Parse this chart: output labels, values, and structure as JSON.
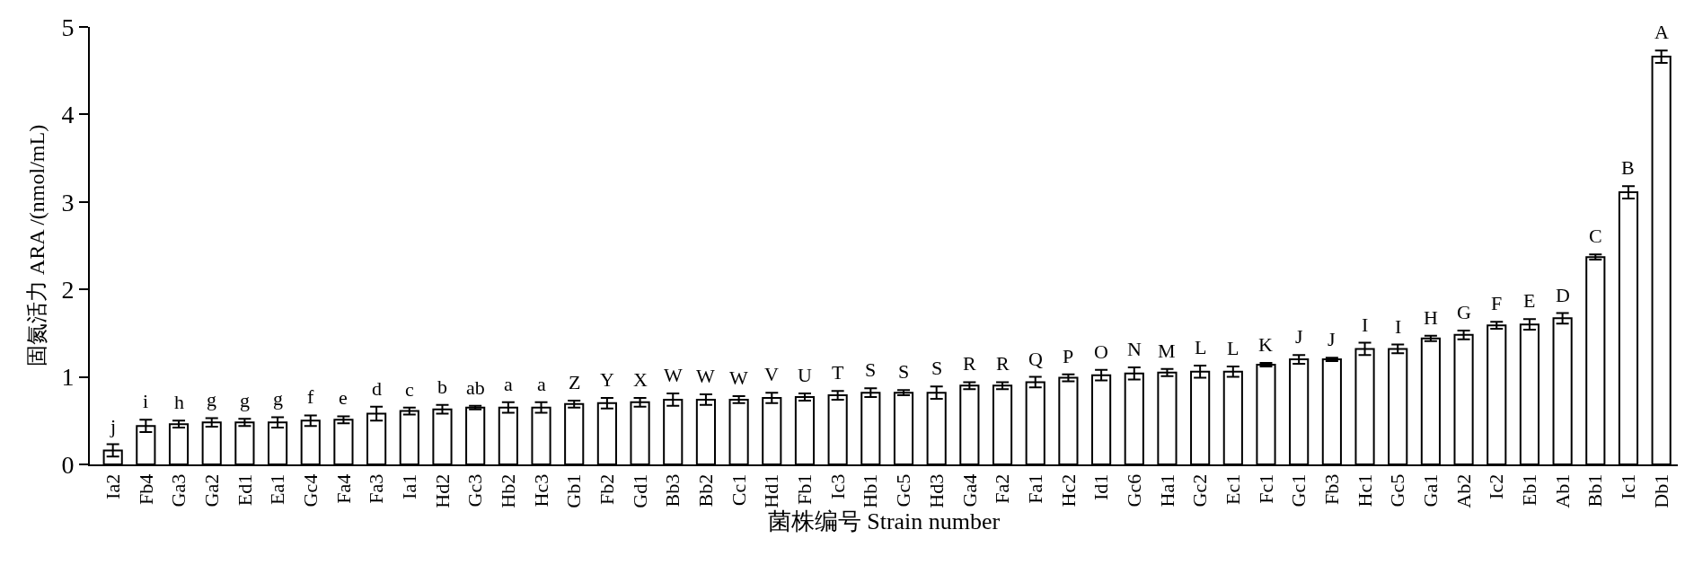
{
  "chart_data": {
    "type": "bar",
    "xlabel": "菌株编号 Strain number",
    "ylabel": "固氮活力 ARA /(nmol/mL)",
    "categories": [
      "Ia2",
      "Fb4",
      "Ga3",
      "Ga2",
      "Ed1",
      "Ea1",
      "Gc4",
      "Fa4",
      "Fa3",
      "Ia1",
      "Hd2",
      "Gc3",
      "Hb2",
      "Hc3",
      "Gb1",
      "Fb2",
      "Gd1",
      "Bb3",
      "Bb2",
      "Cc1",
      "Hd1",
      "Fb1",
      "Ic3",
      "Hb1",
      "Gc5",
      "Hd3",
      "Ga4",
      "Fa2",
      "Fa1",
      "Hc2",
      "Id1",
      "Gc6",
      "Ha1",
      "Gc2",
      "Ec1",
      "Fc1",
      "Gc1",
      "Fb3",
      "Hc1",
      "Gc5",
      "Ga1",
      "Ab2",
      "Ic2",
      "Eb1",
      "Ab1",
      "Bb1",
      "Ic1",
      "Db1"
    ],
    "values": [
      0.16,
      0.44,
      0.46,
      0.48,
      0.48,
      0.48,
      0.5,
      0.51,
      0.58,
      0.61,
      0.63,
      0.65,
      0.65,
      0.65,
      0.69,
      0.7,
      0.71,
      0.74,
      0.74,
      0.74,
      0.76,
      0.77,
      0.79,
      0.82,
      0.82,
      0.82,
      0.9,
      0.9,
      0.94,
      0.99,
      1.02,
      1.04,
      1.05,
      1.06,
      1.06,
      1.14,
      1.2,
      1.2,
      1.32,
      1.32,
      1.44,
      1.48,
      1.59,
      1.6,
      1.67,
      2.37,
      3.11,
      4.66
    ],
    "errors": [
      0.07,
      0.07,
      0.04,
      0.05,
      0.04,
      0.06,
      0.06,
      0.04,
      0.08,
      0.04,
      0.05,
      0.02,
      0.06,
      0.06,
      0.04,
      0.06,
      0.05,
      0.07,
      0.06,
      0.04,
      0.06,
      0.04,
      0.05,
      0.05,
      0.03,
      0.07,
      0.04,
      0.04,
      0.06,
      0.04,
      0.06,
      0.07,
      0.04,
      0.07,
      0.06,
      0.02,
      0.05,
      0.02,
      0.07,
      0.05,
      0.03,
      0.05,
      0.04,
      0.06,
      0.06,
      0.03,
      0.07,
      0.07
    ],
    "value_labels": [
      "j",
      "i",
      "h",
      "g",
      "g",
      "g",
      "f",
      "e",
      "d",
      "c",
      "b",
      "ab",
      "a",
      "a",
      "Z",
      "Y",
      "X",
      "W",
      "W",
      "W",
      "V",
      "U",
      "T",
      "S",
      "S",
      "S",
      "R",
      "R",
      "Q",
      "P",
      "O",
      "N",
      "M",
      "L",
      "L",
      "K",
      "J",
      "J",
      "I",
      "I",
      "H",
      "G",
      "F",
      "E",
      "D",
      "C",
      "B",
      "A"
    ],
    "color": "#ffffff",
    "ylim": [
      0,
      5
    ],
    "yticks": [
      0,
      1,
      2,
      3,
      4,
      5
    ]
  }
}
